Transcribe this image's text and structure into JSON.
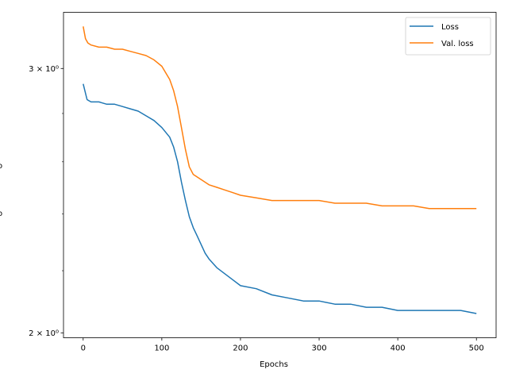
{
  "chart_data": {
    "type": "line",
    "title": "",
    "xlabel": "Epochs",
    "ylabel": "",
    "xlim": [
      -25,
      525
    ],
    "ylim": [
      1.985,
      3.27
    ],
    "yscale": "log",
    "x_ticks": [
      0,
      100,
      200,
      300,
      400,
      500
    ],
    "x_tick_labels": [
      "0",
      "100",
      "200",
      "300",
      "400",
      "500"
    ],
    "y_major_ticks": [
      2,
      3
    ],
    "y_major_tick_labels": [
      "2 × 10⁰",
      "3 × 10⁰"
    ],
    "y_label_fragments": [
      "o",
      "o"
    ],
    "grid": false,
    "legend_position": "top-right",
    "series": [
      {
        "name": "Loss",
        "color": "#1f77b4",
        "x": [
          0,
          5,
          10,
          20,
          30,
          40,
          50,
          60,
          70,
          80,
          90,
          100,
          110,
          115,
          120,
          125,
          130,
          135,
          140,
          145,
          150,
          155,
          160,
          170,
          180,
          190,
          200,
          220,
          240,
          260,
          280,
          300,
          320,
          340,
          360,
          380,
          400,
          420,
          440,
          460,
          480,
          500
        ],
        "values": [
          2.93,
          2.86,
          2.85,
          2.85,
          2.84,
          2.84,
          2.83,
          2.82,
          2.81,
          2.79,
          2.77,
          2.74,
          2.7,
          2.66,
          2.6,
          2.52,
          2.45,
          2.39,
          2.35,
          2.32,
          2.29,
          2.26,
          2.24,
          2.21,
          2.19,
          2.17,
          2.15,
          2.14,
          2.12,
          2.11,
          2.1,
          2.1,
          2.09,
          2.09,
          2.08,
          2.08,
          2.07,
          2.07,
          2.07,
          2.07,
          2.07,
          2.06
        ]
      },
      {
        "name": "Val. loss",
        "color": "#ff7f0e",
        "x": [
          0,
          3,
          6,
          10,
          20,
          30,
          40,
          50,
          60,
          70,
          80,
          90,
          100,
          105,
          110,
          115,
          120,
          125,
          130,
          135,
          140,
          150,
          160,
          170,
          180,
          190,
          200,
          220,
          240,
          260,
          280,
          300,
          320,
          340,
          360,
          380,
          400,
          420,
          440,
          460,
          480,
          500
        ],
        "values": [
          3.2,
          3.14,
          3.12,
          3.11,
          3.1,
          3.1,
          3.09,
          3.09,
          3.08,
          3.07,
          3.06,
          3.04,
          3.01,
          2.98,
          2.95,
          2.9,
          2.83,
          2.74,
          2.65,
          2.58,
          2.55,
          2.53,
          2.51,
          2.5,
          2.49,
          2.48,
          2.47,
          2.46,
          2.45,
          2.45,
          2.45,
          2.45,
          2.44,
          2.44,
          2.44,
          2.43,
          2.43,
          2.43,
          2.42,
          2.42,
          2.42,
          2.42
        ]
      }
    ]
  }
}
